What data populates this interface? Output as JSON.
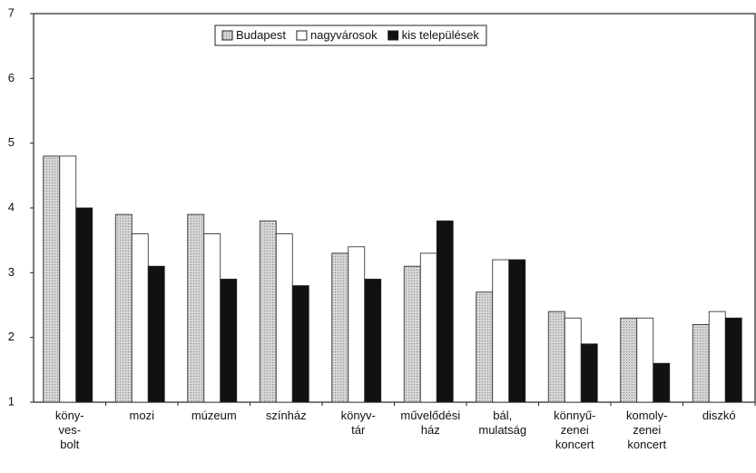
{
  "chart_data": {
    "type": "bar",
    "categories": [
      "köny-\nves-\nbolt",
      "mozi",
      "múzeum",
      "színház",
      "könyv-\ntár",
      "művelődési\nház",
      "bál,\nmulatság",
      "könnyű-\nzenei\nkoncert",
      "komoly-\nzenei\nkoncert",
      "diszkó"
    ],
    "series": [
      {
        "name": "Budapest",
        "color": "#c8c8c8",
        "values": [
          4.8,
          3.9,
          3.9,
          3.8,
          3.3,
          3.1,
          2.7,
          2.4,
          2.3,
          2.2
        ]
      },
      {
        "name": "nagyvárosok",
        "color": "#ffffff",
        "values": [
          4.8,
          3.6,
          3.6,
          3.6,
          3.4,
          3.3,
          3.2,
          2.3,
          2.3,
          2.4
        ]
      },
      {
        "name": "kis települések",
        "color": "#111111",
        "values": [
          4.0,
          3.1,
          2.9,
          2.8,
          2.9,
          3.8,
          3.2,
          1.9,
          1.6,
          2.3
        ]
      }
    ],
    "ylim": [
      1,
      7
    ],
    "yticks": [
      1,
      2,
      3,
      4,
      5,
      6,
      7
    ],
    "legend": "top",
    "grid": false
  }
}
